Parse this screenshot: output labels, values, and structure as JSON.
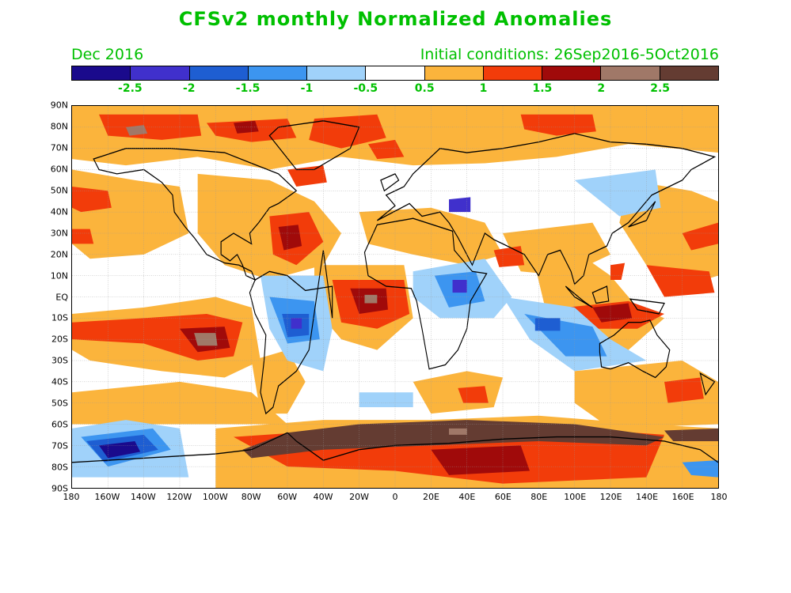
{
  "title": "CFSv2 monthly Normalized Anomalies",
  "valid_month": "Dec 2016",
  "initial_conditions": "Initial conditions: 26Sep2016-5Oct2016",
  "colors": {
    "title": "#00c000"
  },
  "colorbar": {
    "colors": [
      "#1a0a8c",
      "#4030cc",
      "#1e5ed2",
      "#3c95f0",
      "#a0d2fa",
      "#ffffff",
      "#fbb43c",
      "#f23c0a",
      "#a00a0a",
      "#a07868",
      "#643c32"
    ],
    "labels": [
      "-2.5",
      "-2",
      "-1.5",
      "-1",
      "-0.5",
      "0.5",
      "1",
      "1.5",
      "2",
      "2.5"
    ]
  },
  "map": {
    "lat_labels": [
      "90N",
      "80N",
      "70N",
      "60N",
      "50N",
      "40N",
      "30N",
      "20N",
      "10N",
      "EQ",
      "10S",
      "20S",
      "30S",
      "40S",
      "50S",
      "60S",
      "70S",
      "80S",
      "90S"
    ],
    "lon_labels": [
      "180",
      "160W",
      "140W",
      "120W",
      "100W",
      "80W",
      "60W",
      "40W",
      "20W",
      "0",
      "20E",
      "40E",
      "60E",
      "80E",
      "100E",
      "120E",
      "140E",
      "160E",
      "180"
    ]
  }
}
